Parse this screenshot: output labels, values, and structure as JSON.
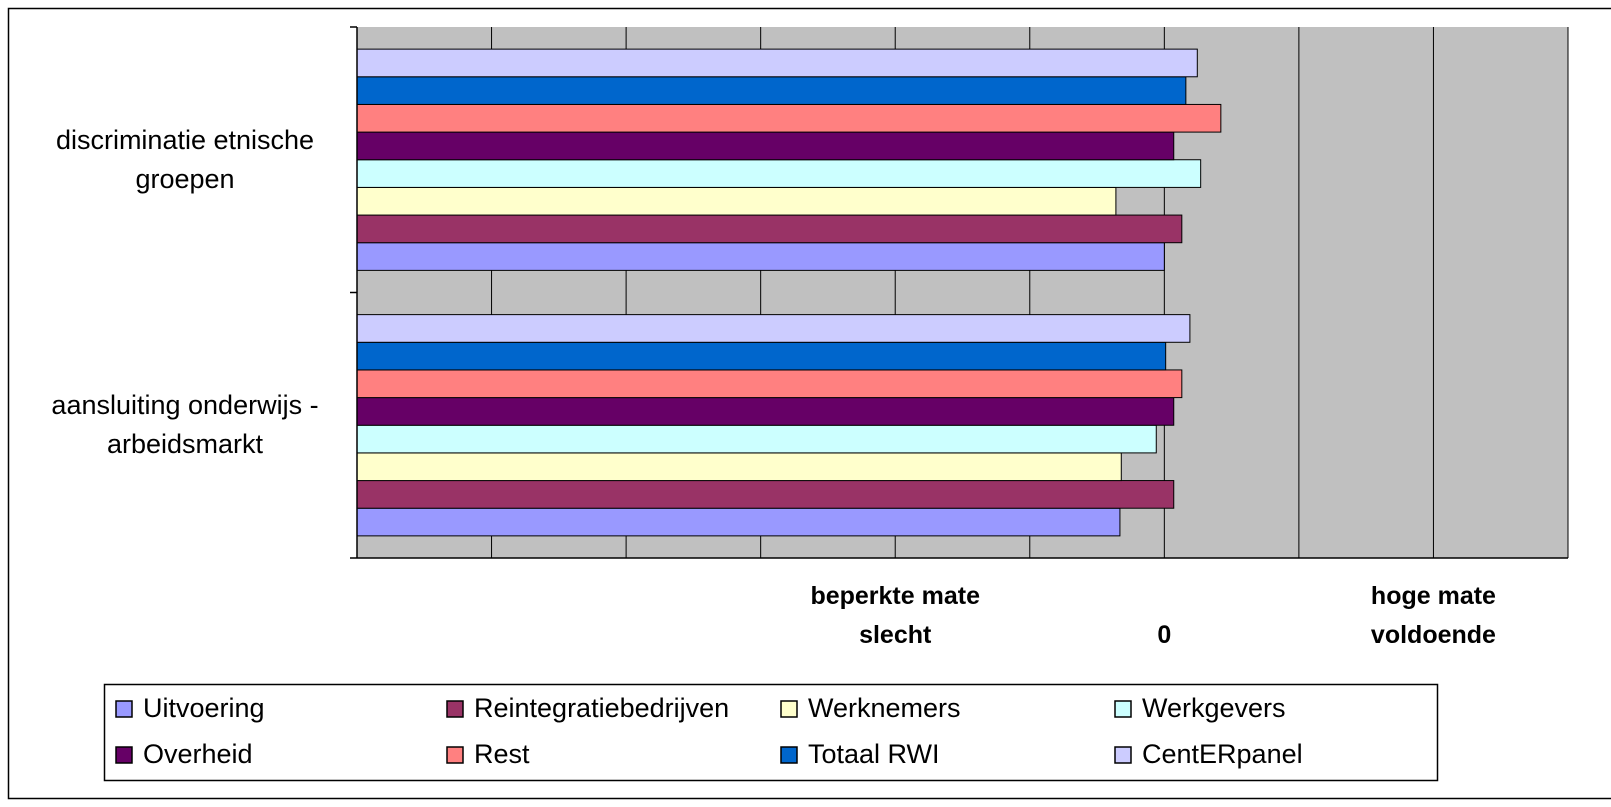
{
  "chart_data": {
    "type": "hbar",
    "categories": [
      "discriminatie etnische groepen",
      "aansluiting onderwijs - arbeidsmarkt"
    ],
    "series": [
      {
        "name": "Uitvoering",
        "color": "#9999ff",
        "values": [
          0.0,
          -0.33
        ]
      },
      {
        "name": "Reintegratiebedrijven",
        "color": "#993366",
        "values": [
          0.13,
          0.07
        ]
      },
      {
        "name": "Werknemers",
        "color": "#ffffcc",
        "values": [
          -0.36,
          -0.32
        ]
      },
      {
        "name": "Werkgevers",
        "color": "#ccffff",
        "values": [
          0.27,
          -0.06
        ]
      },
      {
        "name": "Overheid",
        "color": "#660066",
        "values": [
          0.07,
          0.07
        ]
      },
      {
        "name": "Rest",
        "color": "#ff8080",
        "values": [
          0.42,
          0.13
        ]
      },
      {
        "name": "Totaal RWI",
        "color": "#0066cc",
        "values": [
          0.16,
          0.01
        ]
      },
      {
        "name": "CentERpanel",
        "color": "#ccccff",
        "values": [
          0.245,
          0.19
        ]
      }
    ],
    "xlim": [
      -6,
      3
    ],
    "xticks": [
      {
        "value": -2,
        "label": "beperkte mate\nslecht"
      },
      0,
      {
        "value": 2,
        "label": "hoge mate\nvoldoende"
      }
    ],
    "grid_lines": [
      -6,
      -5,
      -4,
      -3,
      -2,
      -1,
      0,
      1,
      2,
      3
    ],
    "grid": true,
    "plot_background": "#c0c0c0",
    "legend": "bottom"
  }
}
